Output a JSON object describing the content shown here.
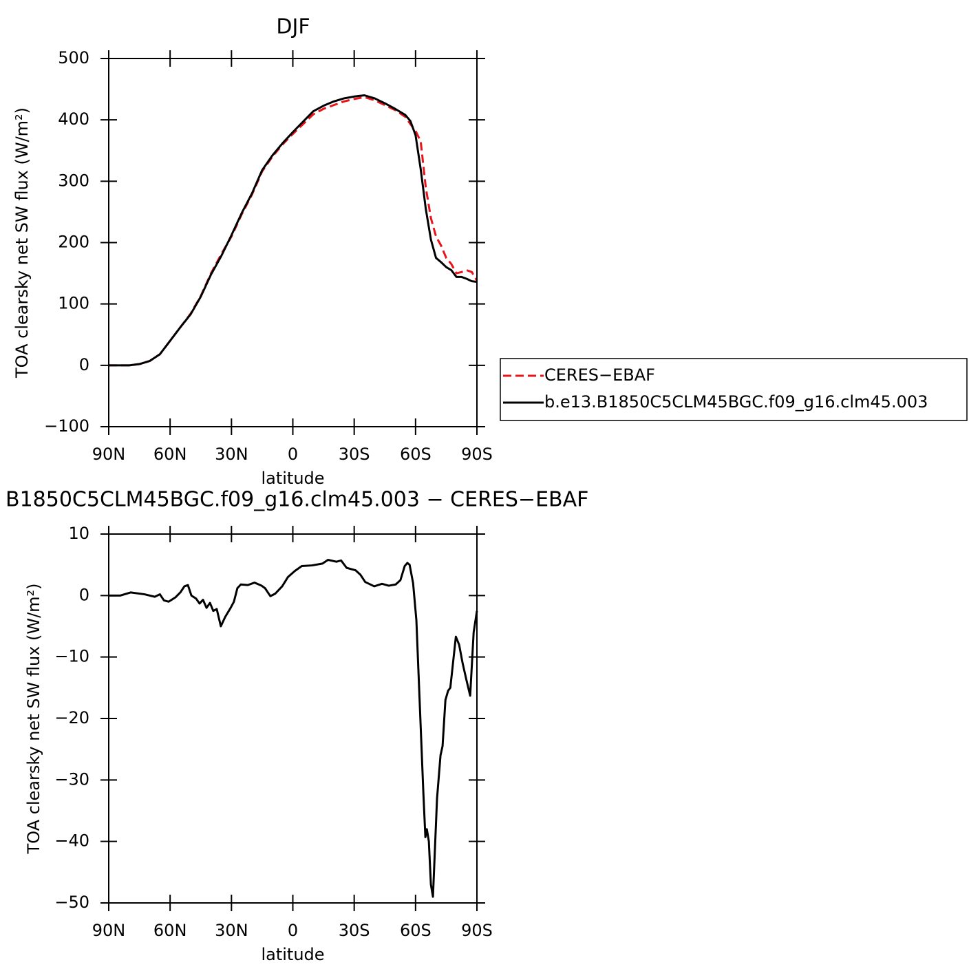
{
  "chart_data": [
    {
      "type": "line",
      "title": "DJF",
      "xlabel": "latitude",
      "ylabel": "TOA clearsky net SW flux (W/m²)",
      "x": [
        90,
        85,
        80,
        75,
        70,
        65,
        60,
        55,
        50,
        45,
        40,
        35,
        30,
        25,
        20,
        15,
        10,
        5,
        0,
        -5,
        -10,
        -15,
        -20,
        -25,
        -30,
        -35,
        -40,
        -45,
        -50,
        -55,
        -57.5,
        -60,
        -62.5,
        -65,
        -67.5,
        -70,
        -72.5,
        -75,
        -77.5,
        -80,
        -82.5,
        -85,
        -87.5,
        -90
      ],
      "series": [
        {
          "name": "CERES−EBAF",
          "color": "#e8141a",
          "line_style": "dashed",
          "values": [
            0,
            0,
            0,
            2,
            7,
            18,
            40,
            62,
            84,
            113,
            150,
            181,
            210,
            246,
            278,
            316,
            340,
            360,
            377,
            393,
            409,
            418,
            424,
            430,
            434,
            437,
            432,
            424,
            416,
            405,
            393,
            382,
            365,
            290,
            240,
            210,
            195,
            175,
            165,
            150,
            152,
            155,
            152,
            138
          ]
        },
        {
          "name": "b.e13.B1850C5CLM45BGC.f09_g16.clm45.003",
          "color": "#000000",
          "line_style": "solid",
          "values": [
            0,
            0,
            0,
            2,
            7,
            18,
            40,
            62,
            83,
            112,
            148,
            178,
            212,
            248,
            280,
            318,
            342,
            362,
            380,
            397,
            414,
            423,
            430,
            435,
            438,
            440,
            435,
            427,
            418,
            408,
            398,
            375,
            320,
            255,
            205,
            175,
            168,
            160,
            155,
            144,
            144,
            141,
            137,
            136
          ]
        }
      ],
      "xlim": [
        90,
        -90
      ],
      "xticks": [
        {
          "value": 90,
          "label": "90N"
        },
        {
          "value": 60,
          "label": "60N"
        },
        {
          "value": 30,
          "label": "30N"
        },
        0,
        {
          "value": -30,
          "label": "30S"
        },
        {
          "value": -60,
          "label": "60S"
        },
        {
          "value": -90,
          "label": "90S"
        }
      ],
      "ylim": [
        -100,
        500
      ],
      "yticks": [
        {
          "value": -100,
          "label": "−100"
        },
        0,
        100,
        200,
        300,
        400,
        500
      ],
      "legend": "right"
    },
    {
      "type": "line",
      "title": "B1850C5CLM45BGC.f09_g16.clm45.003 − CERES−EBAF",
      "xlabel": "latitude",
      "ylabel": "TOA clearsky net SW flux (W/m²)",
      "x": [
        90,
        84.3,
        79.2,
        72.5,
        67.5,
        65,
        63,
        60.7,
        57.4,
        55,
        53,
        51.3,
        49.6,
        47.3,
        45.6,
        43.9,
        42.2,
        40.5,
        38.9,
        37.2,
        35.2,
        33.1,
        30.4,
        28.8,
        27.1,
        25.4,
        22,
        18.7,
        15.3,
        13.6,
        11,
        8.6,
        5.2,
        2.4,
        -1,
        -4.4,
        -9.4,
        -14.5,
        -17.2,
        -21.3,
        -23.6,
        -26.3,
        -30.7,
        -33,
        -35.4,
        -39.8,
        -43.6,
        -46.9,
        -50.3,
        -52.6,
        -54.7,
        -56,
        -57.1,
        -58.8,
        -60.4,
        -62.1,
        -63.8,
        -64.8,
        -65.5,
        -66.5,
        -67.5,
        -68.5,
        -70.5,
        -72.2,
        -73.2,
        -74.6,
        -75.9,
        -77,
        -78.3,
        -79.7,
        -81.3,
        -83,
        -84.7,
        -86.7,
        -88.4,
        -90
      ],
      "series": [
        {
          "color": "#000000",
          "line_style": "solid",
          "values": [
            0,
            0,
            0.5,
            0.2,
            -0.2,
            0.2,
            -0.8,
            -1,
            -0.3,
            0.5,
            1.5,
            1.7,
            0,
            -0.5,
            -1.3,
            -0.7,
            -2,
            -1.2,
            -2.5,
            -2.2,
            -5,
            -3.5,
            -2,
            -1,
            1.2,
            1.8,
            1.7,
            2.1,
            1.6,
            1.2,
            -0.1,
            0.3,
            1.5,
            3,
            4,
            4.8,
            4.9,
            5.2,
            5.8,
            5.5,
            5.7,
            4.5,
            4.1,
            3.4,
            2.2,
            1.5,
            1.9,
            1.6,
            1.8,
            2.5,
            4.8,
            5.3,
            5,
            2,
            -4,
            -18,
            -32,
            -39.3,
            -38,
            -40,
            -47,
            -49,
            -33,
            -26,
            -24.5,
            -17,
            -15.5,
            -15,
            -11,
            -6.7,
            -8,
            -11,
            -13.5,
            -16.3,
            -6,
            -2.5
          ]
        }
      ],
      "xlim": [
        90,
        -90
      ],
      "xticks": [
        {
          "value": 90,
          "label": "90N"
        },
        {
          "value": 60,
          "label": "60N"
        },
        {
          "value": 30,
          "label": "30N"
        },
        0,
        {
          "value": -30,
          "label": "30S"
        },
        {
          "value": -60,
          "label": "60S"
        },
        {
          "value": -90,
          "label": "90S"
        }
      ],
      "ylim": [
        -50,
        10
      ],
      "yticks": [
        {
          "value": -50,
          "label": "−50"
        },
        {
          "value": -40,
          "label": "−40"
        },
        {
          "value": -30,
          "label": "−30"
        },
        {
          "value": -20,
          "label": "−20"
        },
        {
          "value": -10,
          "label": "−10"
        },
        0,
        10
      ]
    }
  ]
}
